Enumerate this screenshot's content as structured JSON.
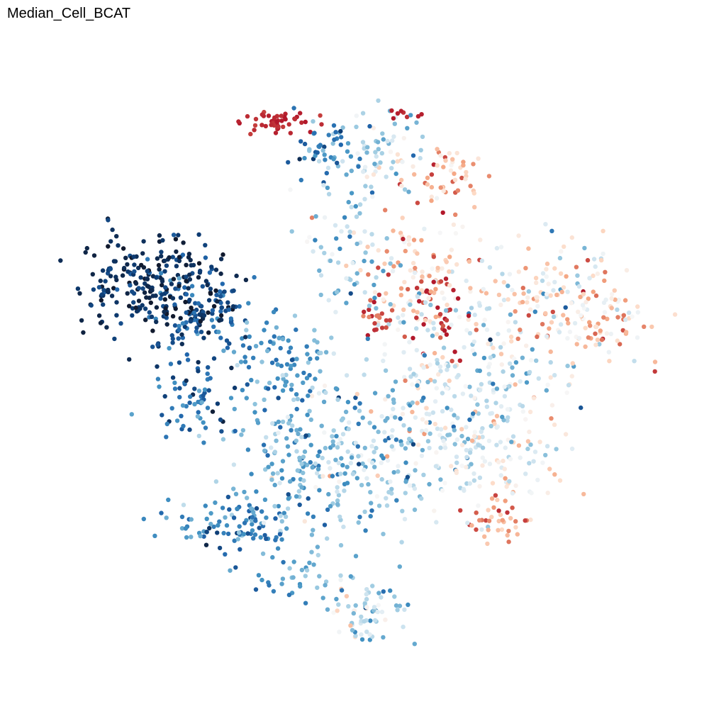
{
  "chart_data": {
    "type": "scatter",
    "title": "Median_Cell_BCAT",
    "xlabel": "",
    "ylabel": "",
    "axes_visible": false,
    "grid": false,
    "legend": "none",
    "colormap": [
      "#111a2e",
      "#0d3a70",
      "#2166ac",
      "#4393c3",
      "#92c5de",
      "#d1e5f0",
      "#f7f7f7",
      "#fddbc7",
      "#f4a582",
      "#d6604d",
      "#b2182b"
    ],
    "xlim": [
      0,
      100
    ],
    "ylim": [
      0,
      100
    ],
    "clusters": [
      {
        "x": 18,
        "y": 63,
        "sx": 5.5,
        "sy": 3.8,
        "n": 230,
        "value": 0.06,
        "spread": 0.06
      },
      {
        "x": 25,
        "y": 58,
        "sx": 5.0,
        "sy": 3.5,
        "n": 140,
        "value": 0.16,
        "spread": 0.08
      },
      {
        "x": 37,
        "y": 89,
        "sx": 3.5,
        "sy": 0.8,
        "n": 45,
        "value": 0.98,
        "spread": 0.02
      },
      {
        "x": 44,
        "y": 84,
        "sx": 2.5,
        "sy": 2.5,
        "n": 45,
        "value": 0.25,
        "spread": 0.08
      },
      {
        "x": 53,
        "y": 84,
        "sx": 4.0,
        "sy": 4.0,
        "n": 70,
        "value": 0.45,
        "spread": 0.1
      },
      {
        "x": 57,
        "y": 90,
        "sx": 1.5,
        "sy": 0.5,
        "n": 8,
        "value": 0.98,
        "spread": 0.02
      },
      {
        "x": 64,
        "y": 80,
        "sx": 4.0,
        "sy": 3.0,
        "n": 60,
        "value": 0.78,
        "spread": 0.12
      },
      {
        "x": 60,
        "y": 64,
        "sx": 5.0,
        "sy": 4.5,
        "n": 110,
        "value": 0.72,
        "spread": 0.15
      },
      {
        "x": 49,
        "y": 66,
        "sx": 3.0,
        "sy": 6.0,
        "n": 70,
        "value": 0.42,
        "spread": 0.1
      },
      {
        "x": 80,
        "y": 60,
        "sx": 7.0,
        "sy": 5.0,
        "n": 140,
        "value": 0.62,
        "spread": 0.15
      },
      {
        "x": 87,
        "y": 57,
        "sx": 4.0,
        "sy": 4.0,
        "n": 70,
        "value": 0.7,
        "spread": 0.12
      },
      {
        "x": 68,
        "y": 50,
        "sx": 7.0,
        "sy": 6.0,
        "n": 160,
        "value": 0.52,
        "spread": 0.15
      },
      {
        "x": 38,
        "y": 50,
        "sx": 4.0,
        "sy": 4.0,
        "n": 90,
        "value": 0.28,
        "spread": 0.08
      },
      {
        "x": 25,
        "y": 44,
        "sx": 3.5,
        "sy": 2.5,
        "n": 60,
        "value": 0.22,
        "spread": 0.08
      },
      {
        "x": 45,
        "y": 34,
        "sx": 8.0,
        "sy": 6.0,
        "n": 260,
        "value": 0.36,
        "spread": 0.1
      },
      {
        "x": 32,
        "y": 24,
        "sx": 5.0,
        "sy": 2.5,
        "n": 100,
        "value": 0.26,
        "spread": 0.08
      },
      {
        "x": 60,
        "y": 38,
        "sx": 7.0,
        "sy": 6.0,
        "n": 170,
        "value": 0.5,
        "spread": 0.12
      },
      {
        "x": 74,
        "y": 36,
        "sx": 5.0,
        "sy": 5.0,
        "n": 90,
        "value": 0.6,
        "spread": 0.12
      },
      {
        "x": 72,
        "y": 25,
        "sx": 2.5,
        "sy": 1.5,
        "n": 35,
        "value": 0.8,
        "spread": 0.1
      },
      {
        "x": 52,
        "y": 10,
        "sx": 3.0,
        "sy": 3.0,
        "n": 70,
        "value": 0.48,
        "spread": 0.12
      },
      {
        "x": 40,
        "y": 16,
        "sx": 4.0,
        "sy": 2.0,
        "n": 35,
        "value": 0.32,
        "spread": 0.08
      },
      {
        "x": 63,
        "y": 58,
        "sx": 2.0,
        "sy": 3.5,
        "n": 30,
        "value": 0.96,
        "spread": 0.04
      },
      {
        "x": 53,
        "y": 57,
        "sx": 1.5,
        "sy": 2.0,
        "n": 20,
        "value": 0.92,
        "spread": 0.05
      }
    ]
  }
}
